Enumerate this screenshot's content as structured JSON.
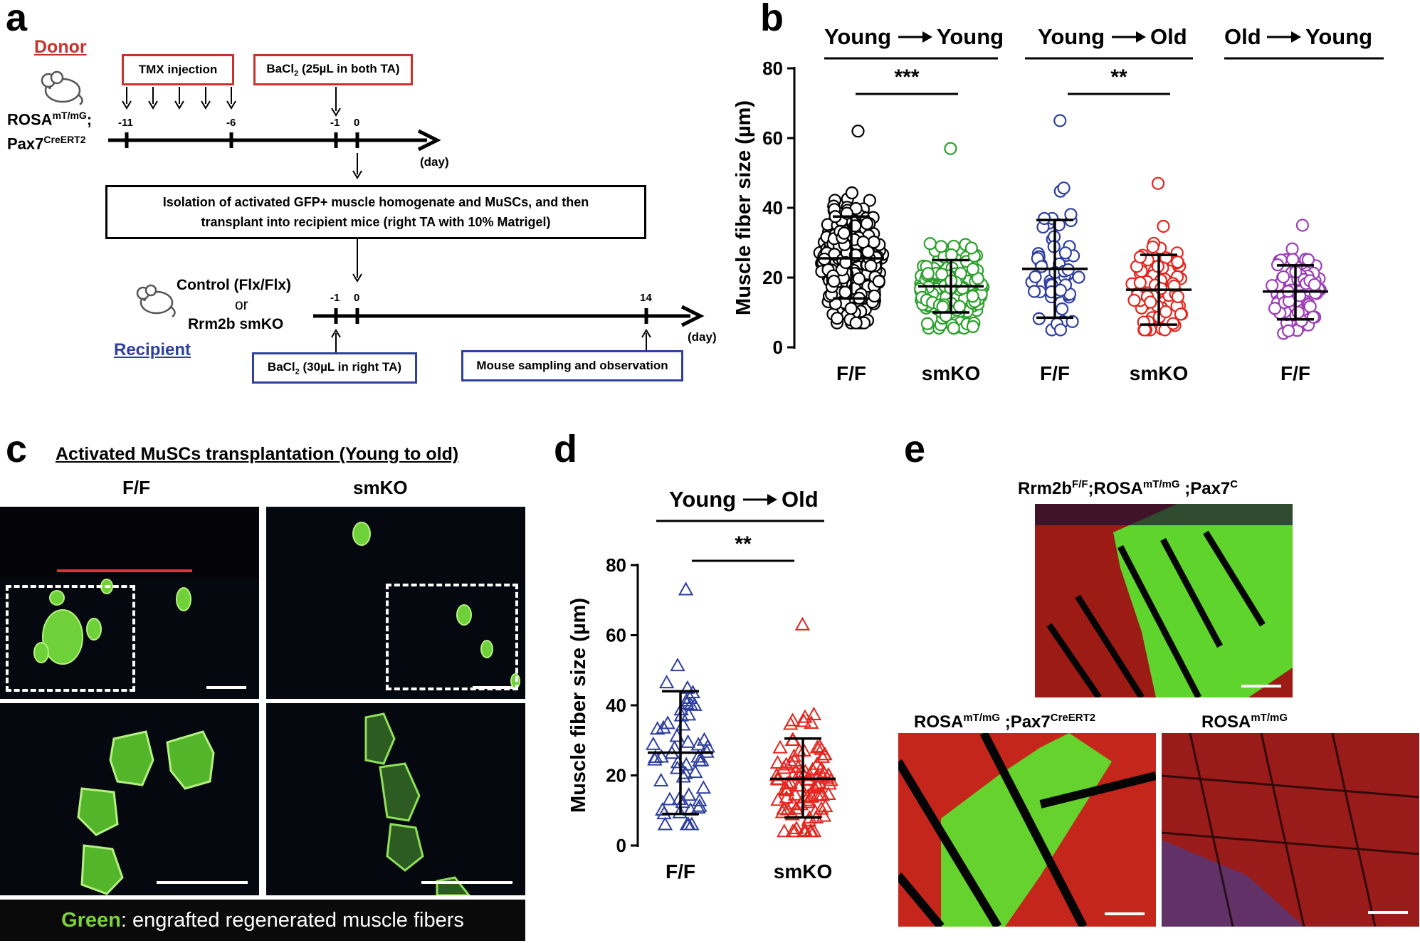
{
  "panel_letters": {
    "a": "a",
    "b": "b",
    "c": "c",
    "d": "d",
    "e": "e"
  },
  "panel_a": {
    "donor_label": "Donor",
    "donor_strain_line1": "ROSA",
    "donor_strain_sup1": "mT/mG",
    "donor_strain_sep": ";",
    "donor_strain_line2": "Pax7",
    "donor_strain_sup2": "CreERT2",
    "tmx_box": "TMX injection",
    "bacl2_donor_box_pre": "BaCl",
    "bacl2_donor_box_sub": "2",
    "bacl2_donor_box_post": " (25µL in both TA)",
    "donor_ticks": [
      "-11",
      "-6",
      "-1",
      "0"
    ],
    "day_label": "(day)",
    "isolation_line1": "Isolation of activated GFP+ muscle homogenate and MuSCs, and then",
    "isolation_line2": "transplant into recipient mice (right TA with 10% Matrigel)",
    "recipient_control": "Control (Flx/Flx)",
    "recipient_or": "or",
    "recipient_ko": "Rrm2b smKO",
    "recipient_label": "Recipient",
    "recipient_ticks": [
      "-1",
      "0",
      "14"
    ],
    "bacl2_recipient_box_pre": "BaCl",
    "bacl2_recipient_box_sub": "2",
    "bacl2_recipient_box_post": " (30µL in right TA)",
    "sampling_box": "Mouse sampling and observation",
    "colors": {
      "donor": "#c8322d",
      "recipient": "#2f3f9e"
    }
  },
  "panel_c": {
    "title": "Activated MuSCs transplantation (Young to old)",
    "col_ff": "F/F",
    "col_smko": "smKO",
    "legend_green": "Green",
    "legend_rest": ": engrafted regenerated muscle fibers",
    "colors": {
      "green": "#7fd13b"
    }
  },
  "panel_e": {
    "label_top_a": "Rrm2b",
    "label_top_a_sup": "F/F",
    "label_top_b": ";ROSA",
    "label_top_b_sup": "mT/mG",
    "label_top_c": " ;Pax7",
    "label_top_c_sup": "C",
    "label_bl_a": "ROSA",
    "label_bl_a_sup": "mT/mG",
    "label_bl_b": " ;Pax7",
    "label_bl_b_sup": "CreERT2",
    "label_br_a": "ROSA",
    "label_br_a_sup": "mT/mG"
  },
  "chart_data": [
    {
      "type": "scatter",
      "panel": "b",
      "ylabel": "Muscle fiber size (µm)",
      "ylim": [
        0,
        80
      ],
      "yticks": [
        0,
        20,
        40,
        60,
        80
      ],
      "categories": [
        "F/F",
        "smKO",
        "F/F",
        "smKO",
        "F/F"
      ],
      "group_headers": [
        "Young",
        "Young",
        "Young",
        "Old",
        "Old",
        "Young"
      ],
      "significance": [
        "***",
        "**"
      ],
      "series": [
        {
          "name": "Young→Young F/F",
          "color": "#000000",
          "fill": "#ffffff",
          "marker": "circle",
          "mean": 25.5,
          "sd_low": 14,
          "sd_high": 37.5,
          "min": 7,
          "max": 62,
          "n": 260
        },
        {
          "name": "Young→Young smKO",
          "color": "#2ca02c",
          "fill": "#ffffff",
          "marker": "circle",
          "mean": 17.5,
          "sd_low": 10,
          "sd_high": 25,
          "min": 5.5,
          "max": 57,
          "n": 170
        },
        {
          "name": "Young→Old F/F",
          "color": "#2f3f9e",
          "fill": "#ffffff",
          "marker": "circle",
          "mean": 22.5,
          "sd_low": 8.5,
          "sd_high": 36.5,
          "min": 5,
          "max": 65,
          "n": 55
        },
        {
          "name": "Young→Old smKO",
          "color": "#e3261f",
          "fill": "#ffffff",
          "marker": "circle",
          "mean": 16.5,
          "sd_low": 6.5,
          "sd_high": 26.5,
          "min": 5,
          "max": 47,
          "n": 80
        },
        {
          "name": "Old→Young F/F",
          "color": "#9b3fb5",
          "fill": "#ffffff",
          "marker": "circle",
          "mean": 16,
          "sd_low": 8,
          "sd_high": 23.5,
          "min": 4,
          "max": 35,
          "n": 85
        }
      ]
    },
    {
      "type": "scatter",
      "panel": "d",
      "ylabel": "Muscle fiber size (µm)",
      "ylim": [
        0,
        80
      ],
      "yticks": [
        0,
        20,
        40,
        60,
        80
      ],
      "categories": [
        "F/F",
        "smKO"
      ],
      "group_headers": [
        "Young",
        "Old"
      ],
      "significance": [
        "**"
      ],
      "series": [
        {
          "name": "F/F",
          "color": "#2f3f9e",
          "fill": "none",
          "marker": "triangle",
          "mean": 26.5,
          "sd_low": 9,
          "sd_high": 44,
          "min": 6,
          "max": 73,
          "n": 55
        },
        {
          "name": "smKO",
          "color": "#e3261f",
          "fill": "none",
          "marker": "triangle",
          "mean": 19,
          "sd_low": 8,
          "sd_high": 30.5,
          "min": 4,
          "max": 63,
          "n": 95
        }
      ]
    }
  ]
}
